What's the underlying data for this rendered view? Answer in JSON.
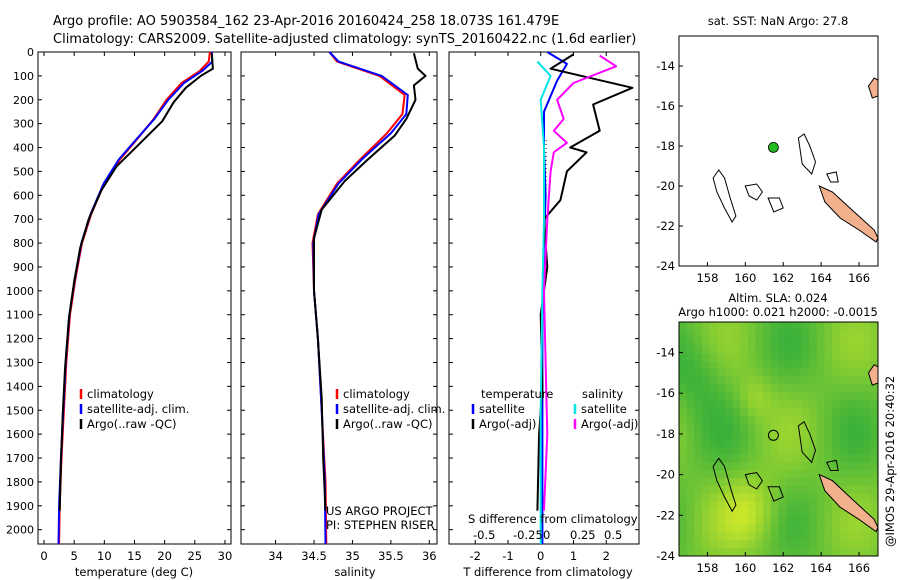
{
  "header": {
    "line1": "Argo profile: AO 5903584_162 23-Apr-2016 20160424_258 18.073S 161.479E",
    "line2": "Climatology: CARS2009. Satellite-adjusted climatology: synTS_20160422.nc (1.6d earlier)"
  },
  "colors": {
    "climatology": "#ff0000",
    "satellite": "#0000ff",
    "argo": "#000000",
    "satellite_diff": "#00e5e5",
    "argo_diff": "#ff00ff",
    "land": "#f2b08c",
    "argo_marker": "#22bb22"
  },
  "chart_data": [
    {
      "id": "temperature",
      "type": "line",
      "xlabel": "temperature (deg C)",
      "xlim": [
        -1,
        31
      ],
      "xticks": [
        0,
        5,
        10,
        15,
        20,
        25,
        30
      ],
      "ylim": [
        0,
        2060
      ],
      "yticks": [
        0,
        100,
        200,
        300,
        400,
        500,
        600,
        700,
        800,
        900,
        1000,
        1100,
        1200,
        1300,
        1400,
        1500,
        1600,
        1700,
        1800,
        1900,
        2000
      ],
      "legend": [
        "climatology",
        "satellite-adj. clim.",
        "Argo(..raw -QC)"
      ],
      "series": [
        {
          "name": "climatology",
          "color": "#ff0000",
          "points": [
            [
              27.5,
              0
            ],
            [
              27.3,
              40
            ],
            [
              25.8,
              80
            ],
            [
              22.8,
              130
            ],
            [
              20.3,
              200
            ],
            [
              18.2,
              280
            ],
            [
              15.6,
              360
            ],
            [
              12.6,
              450
            ],
            [
              10.0,
              550
            ],
            [
              7.8,
              680
            ],
            [
              6.3,
              800
            ],
            [
              5.2,
              950
            ],
            [
              4.3,
              1100
            ],
            [
              3.7,
              1300
            ],
            [
              3.3,
              1500
            ],
            [
              2.9,
              1700
            ],
            [
              2.6,
              1900
            ],
            [
              2.5,
              2060
            ]
          ]
        },
        {
          "name": "satellite-adj. clim.",
          "color": "#0000ff",
          "points": [
            [
              27.8,
              0
            ],
            [
              27.9,
              40
            ],
            [
              26.2,
              80
            ],
            [
              23.2,
              130
            ],
            [
              20.6,
              200
            ],
            [
              18.3,
              280
            ],
            [
              15.5,
              360
            ],
            [
              12.4,
              450
            ],
            [
              9.9,
              550
            ],
            [
              7.7,
              680
            ],
            [
              6.2,
              800
            ],
            [
              5.1,
              950
            ],
            [
              4.2,
              1100
            ],
            [
              3.6,
              1300
            ],
            [
              3.2,
              1500
            ],
            [
              2.8,
              1700
            ],
            [
              2.5,
              1900
            ],
            [
              2.4,
              2060
            ]
          ]
        },
        {
          "name": "Argo(..raw -QC)",
          "color": "#000000",
          "points": [
            [
              27.8,
              5
            ],
            [
              28.0,
              70
            ],
            [
              26.0,
              100
            ],
            [
              23.5,
              150
            ],
            [
              21.5,
              210
            ],
            [
              19.6,
              290
            ],
            [
              16.0,
              380
            ],
            [
              12.0,
              480
            ],
            [
              9.5,
              580
            ],
            [
              7.4,
              700
            ],
            [
              6.0,
              820
            ],
            [
              5.0,
              960
            ],
            [
              4.1,
              1120
            ],
            [
              3.5,
              1320
            ],
            [
              3.1,
              1520
            ],
            [
              2.8,
              1720
            ],
            [
              2.6,
              1920
            ]
          ]
        }
      ]
    },
    {
      "id": "salinity",
      "type": "line",
      "xlabel": "salinity",
      "xlim": [
        33.55,
        36.1
      ],
      "xticks": [
        34,
        34.5,
        35,
        35.5,
        36
      ],
      "ylim": [
        0,
        2060
      ],
      "legend": [
        "climatology",
        "satellite-adj. clim.",
        "Argo(..raw -QC)"
      ],
      "annotation": [
        "US ARGO PROJECT",
        "PI: STEPHEN RISER"
      ],
      "series": [
        {
          "name": "climatology",
          "color": "#ff0000",
          "points": [
            [
              34.7,
              0
            ],
            [
              34.8,
              40
            ],
            [
              35.35,
              100
            ],
            [
              35.68,
              180
            ],
            [
              35.65,
              260
            ],
            [
              35.45,
              340
            ],
            [
              35.1,
              450
            ],
            [
              34.8,
              550
            ],
            [
              34.55,
              680
            ],
            [
              34.48,
              800
            ],
            [
              34.5,
              1000
            ],
            [
              34.55,
              1200
            ],
            [
              34.6,
              1500
            ],
            [
              34.65,
              1800
            ],
            [
              34.66,
              2060
            ]
          ]
        },
        {
          "name": "satellite-adj. clim.",
          "color": "#0000ff",
          "points": [
            [
              34.7,
              0
            ],
            [
              34.82,
              40
            ],
            [
              35.38,
              100
            ],
            [
              35.72,
              180
            ],
            [
              35.7,
              260
            ],
            [
              35.5,
              340
            ],
            [
              35.12,
              450
            ],
            [
              34.82,
              550
            ],
            [
              34.56,
              680
            ],
            [
              34.49,
              800
            ],
            [
              34.5,
              1000
            ],
            [
              34.55,
              1200
            ],
            [
              34.6,
              1500
            ],
            [
              34.64,
              1800
            ],
            [
              34.65,
              2060
            ]
          ]
        },
        {
          "name": "Argo(..raw -QC)",
          "color": "#000000",
          "points": [
            [
              35.8,
              5
            ],
            [
              35.85,
              70
            ],
            [
              35.95,
              100
            ],
            [
              35.8,
              140
            ],
            [
              35.82,
              200
            ],
            [
              35.7,
              280
            ],
            [
              35.55,
              350
            ],
            [
              35.2,
              450
            ],
            [
              34.9,
              540
            ],
            [
              34.6,
              660
            ],
            [
              34.5,
              780
            ],
            [
              34.5,
              1000
            ],
            [
              34.55,
              1200
            ],
            [
              34.6,
              1450
            ],
            [
              34.62,
              1700
            ],
            [
              34.65,
              1920
            ]
          ]
        }
      ]
    },
    {
      "id": "difference",
      "type": "line",
      "xlabel": "T difference from climatology",
      "xlabel_top": "S difference from climatology",
      "xlim": [
        -2.8,
        3.0
      ],
      "xticks": [
        -2,
        -1,
        0,
        1,
        2
      ],
      "top_ticks_labels": [
        "-0.5",
        "-0.25",
        "0",
        "0.25",
        "0.5"
      ],
      "ylim": [
        0,
        2060
      ],
      "legend_left_title": "temperature",
      "legend_right_title": "salinity",
      "legend": [
        "satellite",
        "Argo(-adj)",
        "satellite",
        "Argo(-adj)"
      ],
      "series": [
        {
          "name": "temperature satellite",
          "color": "#0000ff",
          "points": [
            [
              0.2,
              0
            ],
            [
              0.8,
              50
            ],
            [
              0.5,
              120
            ],
            [
              0.1,
              250
            ],
            [
              0.1,
              400
            ],
            [
              0.15,
              600
            ],
            [
              0.1,
              800
            ],
            [
              0.05,
              1100
            ],
            [
              0.05,
              1500
            ],
            [
              0.05,
              2060
            ]
          ]
        },
        {
          "name": "temperature Argo(-adj)",
          "color": "#000000",
          "points": [
            [
              1.0,
              10
            ],
            [
              0.3,
              70
            ],
            [
              2.8,
              150
            ],
            [
              1.6,
              220
            ],
            [
              1.8,
              330
            ],
            [
              0.9,
              400
            ],
            [
              1.4,
              420
            ],
            [
              0.8,
              500
            ],
            [
              0.6,
              620
            ],
            [
              0.1,
              700
            ],
            [
              0.2,
              900
            ],
            [
              0.0,
              1100
            ],
            [
              0.05,
              1400
            ],
            [
              -0.05,
              1600
            ],
            [
              -0.1,
              1920
            ]
          ]
        },
        {
          "name": "salinity satellite",
          "color": "#00e5e5",
          "points": [
            [
              -0.1,
              40
            ],
            [
              0.3,
              100
            ],
            [
              0.0,
              200
            ],
            [
              0.1,
              400
            ],
            [
              0.1,
              700
            ],
            [
              0.05,
              1000
            ],
            [
              0.0,
              1500
            ],
            [
              0.0,
              2060
            ]
          ]
        },
        {
          "name": "salinity Argo(-adj)",
          "color": "#ff00ff",
          "points": [
            [
              1.8,
              15
            ],
            [
              2.3,
              60
            ],
            [
              1.0,
              130
            ],
            [
              0.5,
              200
            ],
            [
              0.7,
              280
            ],
            [
              0.4,
              330
            ],
            [
              0.8,
              380
            ],
            [
              0.4,
              420
            ],
            [
              0.3,
              500
            ],
            [
              0.2,
              700
            ],
            [
              0.1,
              1000
            ],
            [
              0.15,
              1300
            ],
            [
              0.2,
              1600
            ],
            [
              0.1,
              1920
            ]
          ]
        }
      ]
    },
    {
      "id": "sst-map",
      "type": "map",
      "title": "sat. SST: NaN Argo: 27.8",
      "xlim": [
        156.5,
        167
      ],
      "ylim": [
        -24,
        -12.5
      ],
      "xticks": [
        158,
        160,
        162,
        164,
        166
      ],
      "yticks": [
        -14,
        -16,
        -18,
        -20,
        -22,
        -24
      ],
      "argo_position": {
        "lon": 161.48,
        "lat": -18.07
      }
    },
    {
      "id": "sla-map",
      "type": "heatmap",
      "title": "Altim. SLA: 0.024",
      "subtitle": "Argo h1000: 0.021 h2000: -0.0015",
      "xlim": [
        156.5,
        167
      ],
      "ylim": [
        -24,
        -12.5
      ],
      "xticks": [
        158,
        160,
        162,
        164,
        166
      ],
      "yticks": [
        -14,
        -16,
        -18,
        -20,
        -22,
        -24
      ],
      "argo_position": {
        "lon": 161.48,
        "lat": -18.07
      },
      "credit": "@IMOS 29-Apr-2016 20:40:32"
    }
  ]
}
